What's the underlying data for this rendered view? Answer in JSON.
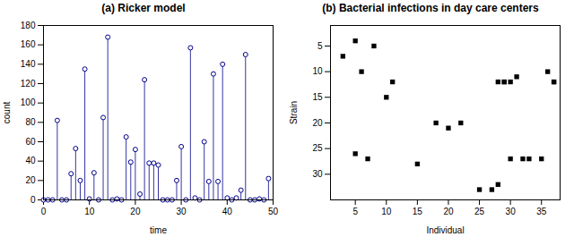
{
  "chart_data": [
    {
      "type": "stem",
      "title": "(a) Ricker model",
      "x": [
        0,
        1,
        2,
        3,
        4,
        5,
        6,
        7,
        8,
        9,
        10,
        11,
        12,
        13,
        14,
        15,
        16,
        17,
        18,
        19,
        20,
        21,
        22,
        23,
        24,
        25,
        26,
        27,
        28,
        29,
        30,
        31,
        32,
        33,
        34,
        35,
        36,
        37,
        38,
        39,
        40,
        41,
        42,
        43,
        44,
        45,
        46,
        47,
        48,
        49
      ],
      "values": [
        0,
        0,
        0,
        82,
        0,
        0,
        27,
        53,
        20,
        135,
        1,
        28,
        0,
        85,
        168,
        0,
        1,
        0,
        65,
        39,
        52,
        6,
        124,
        38,
        38,
        36,
        0,
        0,
        0,
        20,
        55,
        0,
        157,
        2,
        0,
        60,
        19,
        130,
        19,
        140,
        2,
        0,
        2,
        10,
        150,
        0,
        0,
        1,
        0,
        22
      ],
      "color": "#00008B",
      "marker": "circle",
      "xlabel": "time",
      "ylabel": "count",
      "xlim": [
        0,
        50
      ],
      "ylim": [
        0,
        180
      ],
      "xticks": [
        0,
        10,
        20,
        30,
        40,
        50
      ],
      "yticks": [
        0,
        20,
        40,
        60,
        80,
        100,
        120,
        140,
        160,
        180
      ]
    },
    {
      "type": "scatter",
      "title": "(b) Bacterial infections in day care centers",
      "x": [
        3,
        5,
        5,
        6,
        7,
        8,
        10,
        11,
        15,
        18,
        20,
        22,
        25,
        27,
        28,
        29,
        30,
        31,
        32,
        33,
        35,
        36,
        37,
        28,
        29,
        30,
        37
      ],
      "values": [
        7,
        4,
        26,
        10,
        27,
        5,
        15,
        12,
        28,
        20,
        21,
        20,
        33,
        33,
        32,
        12,
        27,
        11,
        27,
        27,
        27,
        10,
        12,
        12,
        12,
        12,
        12
      ],
      "color": "black",
      "marker": "square",
      "xlabel": "Individual",
      "ylabel": "Strain",
      "xlim": [
        1,
        38
      ],
      "ylim": [
        35,
        1
      ],
      "xticks": [
        5,
        10,
        15,
        20,
        25,
        30,
        35
      ],
      "yticks": [
        5,
        10,
        15,
        20,
        25,
        30
      ]
    }
  ]
}
